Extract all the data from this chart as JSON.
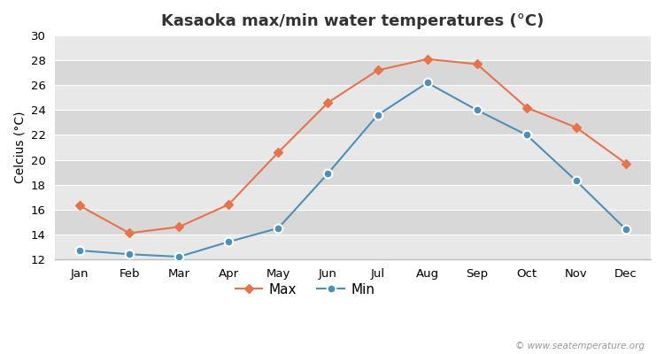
{
  "title": "Kasaoka max/min water temperatures (°C)",
  "ylabel": "Celcius (°C)",
  "months": [
    "Jan",
    "Feb",
    "Mar",
    "Apr",
    "May",
    "Jun",
    "Jul",
    "Aug",
    "Sep",
    "Oct",
    "Nov",
    "Dec"
  ],
  "max_values": [
    16.3,
    14.1,
    14.6,
    16.4,
    20.6,
    24.6,
    27.2,
    28.1,
    27.7,
    24.2,
    22.6,
    19.7
  ],
  "min_values": [
    12.7,
    12.4,
    12.2,
    13.4,
    14.5,
    18.9,
    23.6,
    26.2,
    24.0,
    22.0,
    18.3,
    14.4
  ],
  "max_color": "#E8734A",
  "min_color": "#4A90B8",
  "ylim": [
    12,
    30
  ],
  "yticks": [
    12,
    14,
    16,
    18,
    20,
    22,
    24,
    26,
    28,
    30
  ],
  "band_colors": [
    "#e8e8e8",
    "#d8d8d8"
  ],
  "fig_background": "#ffffff",
  "watermark": "© www.seatemperature.org",
  "title_fontsize": 13,
  "label_fontsize": 10,
  "tick_fontsize": 9.5
}
